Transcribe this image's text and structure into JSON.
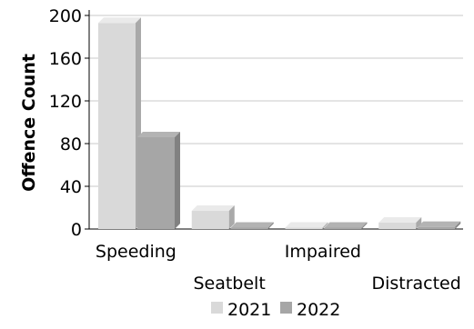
{
  "chart_data": {
    "type": "bar",
    "style": "3d-clustered",
    "title": "",
    "xlabel": "",
    "ylabel": "Offence Count",
    "ylim": [
      0,
      200
    ],
    "yticks": [
      0,
      40,
      80,
      120,
      160,
      200
    ],
    "categories": [
      "Speeding",
      "Seatbelt",
      "Impaired",
      "Distracted"
    ],
    "series": [
      {
        "name": "2021",
        "values": [
          193,
          17,
          0,
          6
        ],
        "color": "#d9d9d9"
      },
      {
        "name": "2022",
        "values": [
          86,
          1,
          1,
          2
        ],
        "color": "#a6a6a6"
      }
    ],
    "grid": true,
    "legend": "bottom"
  }
}
